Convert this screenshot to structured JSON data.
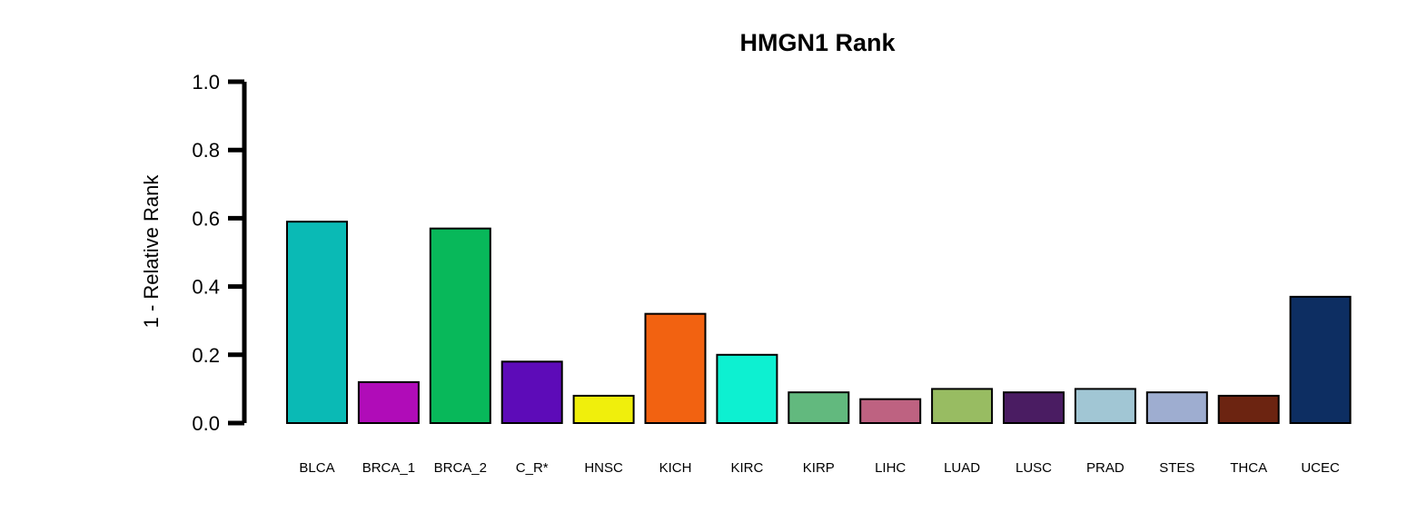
{
  "chart_data": {
    "type": "bar",
    "title": "HMGN1 Rank",
    "xlabel": "",
    "ylabel": "1 - Relative Rank",
    "ylim": [
      0,
      1.0
    ],
    "yticks": [
      "0.0",
      "0.2",
      "0.4",
      "0.6",
      "0.8",
      "1.0"
    ],
    "grid": false,
    "categories": [
      "BLCA",
      "BRCA_1",
      "BRCA_2",
      "C_R*",
      "HNSC",
      "KICH",
      "KIRC",
      "KIRP",
      "LIHC",
      "LUAD",
      "LUSC",
      "PRAD",
      "STES",
      "THCA",
      "UCEC"
    ],
    "values": [
      0.59,
      0.12,
      0.57,
      0.18,
      0.08,
      0.32,
      0.2,
      0.09,
      0.07,
      0.1,
      0.09,
      0.1,
      0.09,
      0.08,
      0.37
    ],
    "colors": [
      "#0ABAB5",
      "#B00CB8",
      "#08B85A",
      "#5D0BB8",
      "#F0EF0C",
      "#F26211",
      "#0DF0D1",
      "#62B97E",
      "#BE6281",
      "#98BC62",
      "#4A1C62",
      "#A1C6D4",
      "#9EADD0",
      "#6C2411",
      "#0D2E62"
    ]
  }
}
